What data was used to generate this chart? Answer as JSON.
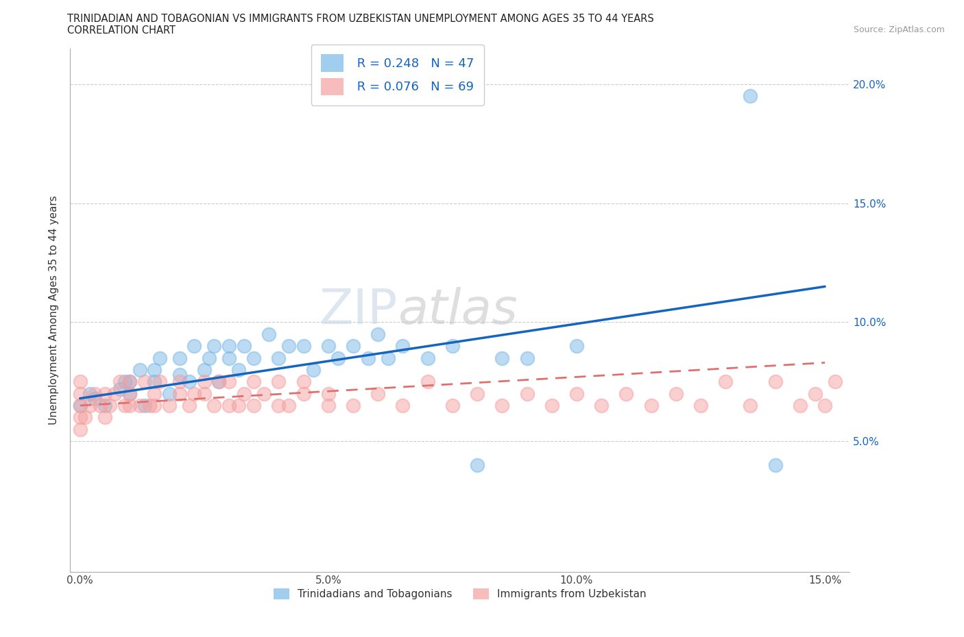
{
  "title_line1": "TRINIDADIAN AND TOBAGONIAN VS IMMIGRANTS FROM UZBEKISTAN UNEMPLOYMENT AMONG AGES 35 TO 44 YEARS",
  "title_line2": "CORRELATION CHART",
  "source_text": "Source: ZipAtlas.com",
  "ylabel": "Unemployment Among Ages 35 to 44 years",
  "xlim": [
    -0.002,
    0.155
  ],
  "ylim": [
    -0.005,
    0.215
  ],
  "xticks": [
    0.0,
    0.05,
    0.1,
    0.15
  ],
  "xticklabels": [
    "0.0%",
    "5.0%",
    "10.0%",
    "15.0%"
  ],
  "yticks": [
    0.05,
    0.1,
    0.15,
    0.2
  ],
  "yticklabels": [
    "5.0%",
    "10.0%",
    "15.0%",
    "20.0%"
  ],
  "blue_R": 0.248,
  "blue_N": 47,
  "pink_R": 0.076,
  "pink_N": 69,
  "blue_color": "#7ab8e8",
  "pink_color": "#f5a0a0",
  "trendline_blue": "#1565c0",
  "trendline_pink": "#e07070",
  "legend_label_blue": "Trinidadians and Tobagonians",
  "legend_label_pink": "Immigrants from Uzbekistan",
  "watermark_zip": "ZIP",
  "watermark_atlas": "atlas",
  "blue_scatter_x": [
    0.0,
    0.002,
    0.003,
    0.005,
    0.008,
    0.009,
    0.01,
    0.01,
    0.012,
    0.013,
    0.015,
    0.015,
    0.016,
    0.018,
    0.02,
    0.02,
    0.022,
    0.023,
    0.025,
    0.026,
    0.027,
    0.028,
    0.03,
    0.03,
    0.032,
    0.033,
    0.035,
    0.038,
    0.04,
    0.042,
    0.045,
    0.047,
    0.05,
    0.052,
    0.055,
    0.058,
    0.06,
    0.062,
    0.065,
    0.07,
    0.075,
    0.08,
    0.085,
    0.09,
    0.1,
    0.135,
    0.14
  ],
  "blue_scatter_y": [
    0.065,
    0.07,
    0.068,
    0.065,
    0.072,
    0.075,
    0.07,
    0.075,
    0.08,
    0.065,
    0.075,
    0.08,
    0.085,
    0.07,
    0.078,
    0.085,
    0.075,
    0.09,
    0.08,
    0.085,
    0.09,
    0.075,
    0.085,
    0.09,
    0.08,
    0.09,
    0.085,
    0.095,
    0.085,
    0.09,
    0.09,
    0.08,
    0.09,
    0.085,
    0.09,
    0.085,
    0.095,
    0.085,
    0.09,
    0.085,
    0.09,
    0.04,
    0.085,
    0.085,
    0.09,
    0.195,
    0.04
  ],
  "pink_scatter_x": [
    0.0,
    0.0,
    0.0,
    0.0,
    0.0,
    0.001,
    0.002,
    0.003,
    0.004,
    0.005,
    0.005,
    0.006,
    0.007,
    0.008,
    0.009,
    0.01,
    0.01,
    0.01,
    0.012,
    0.013,
    0.014,
    0.015,
    0.015,
    0.016,
    0.018,
    0.02,
    0.02,
    0.022,
    0.023,
    0.025,
    0.025,
    0.027,
    0.028,
    0.03,
    0.03,
    0.032,
    0.033,
    0.035,
    0.035,
    0.037,
    0.04,
    0.04,
    0.042,
    0.045,
    0.045,
    0.05,
    0.05,
    0.055,
    0.06,
    0.065,
    0.07,
    0.075,
    0.08,
    0.085,
    0.09,
    0.095,
    0.1,
    0.105,
    0.11,
    0.115,
    0.12,
    0.125,
    0.13,
    0.135,
    0.14,
    0.145,
    0.148,
    0.15,
    0.152
  ],
  "pink_scatter_y": [
    0.055,
    0.06,
    0.065,
    0.07,
    0.075,
    0.06,
    0.065,
    0.07,
    0.065,
    0.06,
    0.07,
    0.065,
    0.07,
    0.075,
    0.065,
    0.065,
    0.07,
    0.075,
    0.065,
    0.075,
    0.065,
    0.065,
    0.07,
    0.075,
    0.065,
    0.07,
    0.075,
    0.065,
    0.07,
    0.07,
    0.075,
    0.065,
    0.075,
    0.065,
    0.075,
    0.065,
    0.07,
    0.065,
    0.075,
    0.07,
    0.065,
    0.075,
    0.065,
    0.07,
    0.075,
    0.065,
    0.07,
    0.065,
    0.07,
    0.065,
    0.075,
    0.065,
    0.07,
    0.065,
    0.07,
    0.065,
    0.07,
    0.065,
    0.07,
    0.065,
    0.07,
    0.065,
    0.075,
    0.065,
    0.075,
    0.065,
    0.07,
    0.065,
    0.075
  ],
  "blue_trend_x0": 0.0,
  "blue_trend_x1": 0.15,
  "blue_trend_y0": 0.068,
  "blue_trend_y1": 0.115,
  "pink_trend_x0": 0.0,
  "pink_trend_x1": 0.15,
  "pink_trend_y0": 0.065,
  "pink_trend_y1": 0.083
}
